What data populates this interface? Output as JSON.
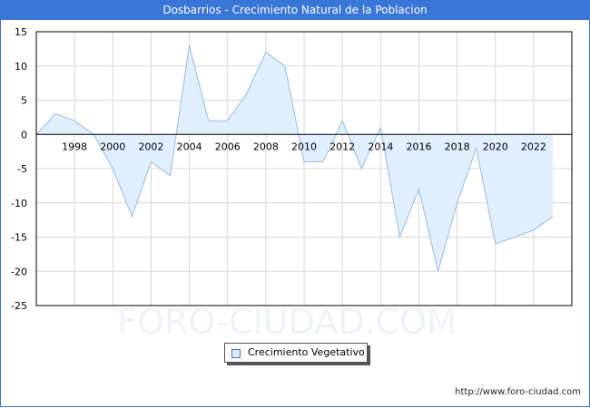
{
  "title": "Dosbarrios - Crecimiento Natural de la Poblacion",
  "watermark": "FORO-CIUDAD.COM",
  "source_url": "http://www.foro-ciudad.com",
  "legend": {
    "label": "Crecimiento Vegetativo",
    "color": "#dbe9fb"
  },
  "colors": {
    "header": "#3a75d8",
    "line": "#99bbe8",
    "fill": "#e1effd",
    "grid": "#d8d8d8"
  },
  "chart_data": {
    "type": "area",
    "title": "Dosbarrios - Crecimiento Natural de la Poblacion",
    "xlabel": "",
    "ylabel": "",
    "x": [
      1996,
      1997,
      1998,
      1999,
      2000,
      2001,
      2002,
      2003,
      2004,
      2005,
      2006,
      2007,
      2008,
      2009,
      2010,
      2011,
      2012,
      2013,
      2014,
      2015,
      2016,
      2017,
      2018,
      2019,
      2020,
      2021,
      2022,
      2023
    ],
    "series": [
      {
        "name": "Crecimiento Vegetativo",
        "values": [
          0,
          3,
          2,
          0,
          -5,
          -12,
          -4,
          -6,
          13,
          2,
          2,
          6,
          12,
          10,
          -4,
          -4,
          2,
          -5,
          1,
          -15,
          -8,
          -20,
          -10,
          -2,
          -16,
          -15,
          -14,
          -12
        ]
      }
    ],
    "x_tick_labels": [
      "1998",
      "2000",
      "2002",
      "2004",
      "2006",
      "2008",
      "2010",
      "2012",
      "2014",
      "2016",
      "2018",
      "2020",
      "2022"
    ],
    "y_tick_labels": [
      "15",
      "10",
      "5",
      "0",
      "-5",
      "-10",
      "-15",
      "-20",
      "-25"
    ],
    "ylim": [
      -25,
      15
    ],
    "xlim": [
      1996,
      2024.8
    ],
    "grid": true,
    "legend_position": "bottom-center"
  }
}
